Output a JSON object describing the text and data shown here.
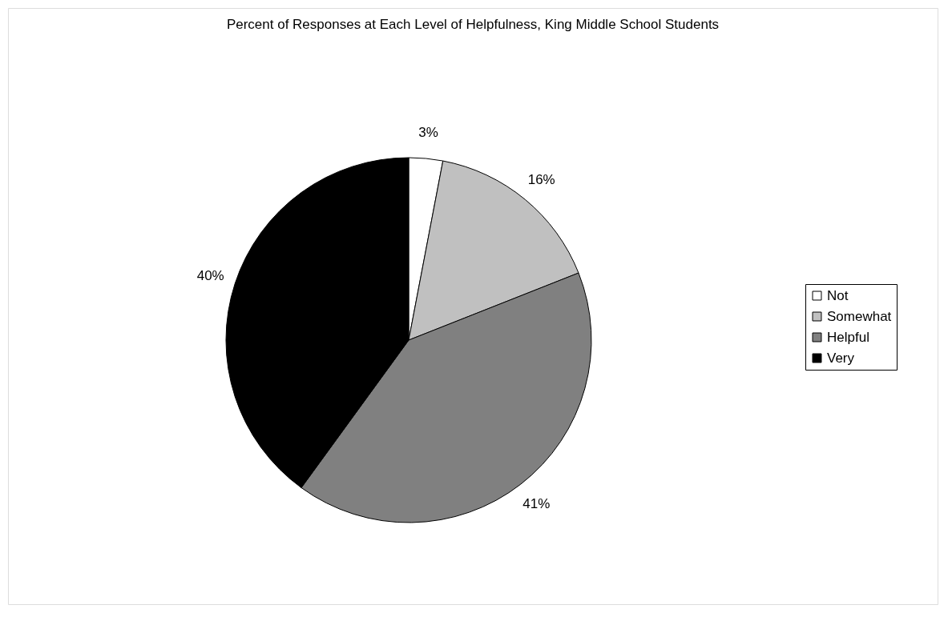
{
  "chart_data": {
    "type": "pie",
    "title": "Percent of Responses at Each Level of Helpfulness, King Middle School Students",
    "categories": [
      "Not",
      "Somewhat",
      "Helpful",
      "Very"
    ],
    "values": [
      3,
      16,
      41,
      40
    ],
    "colors": [
      "#ffffff",
      "#c0c0c0",
      "#808080",
      "#000000"
    ],
    "value_labels": [
      "3%",
      "16%",
      "41%",
      "40%"
    ],
    "legend": "right"
  }
}
